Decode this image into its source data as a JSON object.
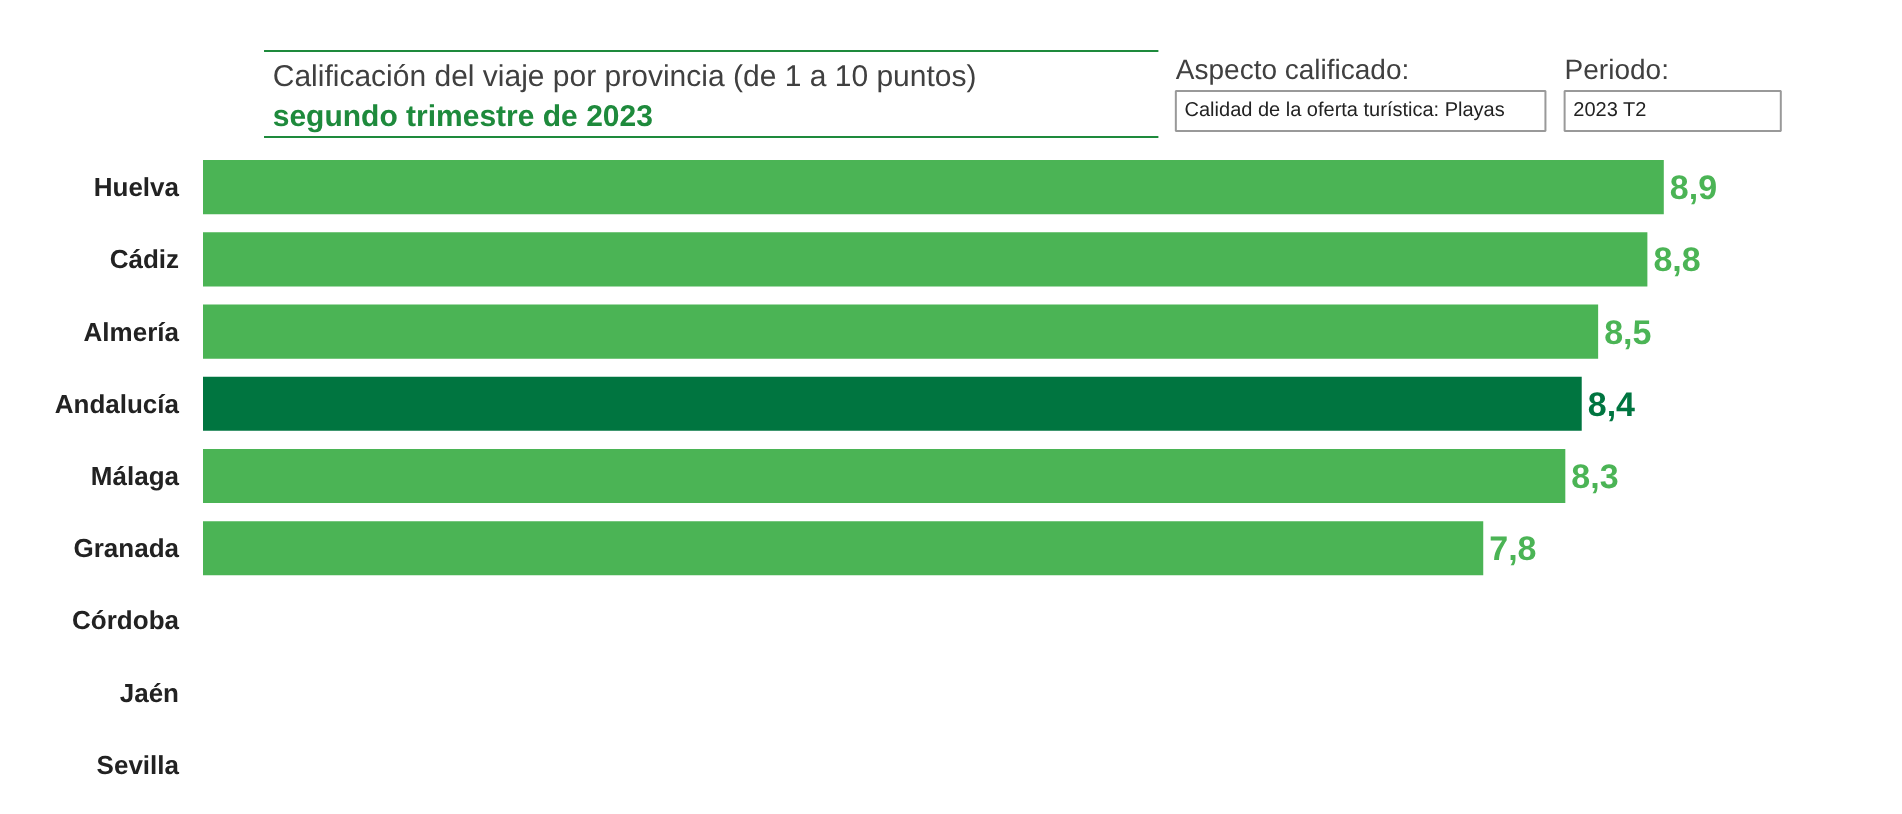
{
  "chart_data": {
    "type": "bar",
    "orientation": "horizontal",
    "title": "Calificación del viaje por provincia (de 1 a 10 puntos)",
    "subtitle": "segundo trimestre de 2023",
    "categories": [
      "Huelva",
      "Cádiz",
      "Almería",
      "Andalucía",
      "Málaga",
      "Granada",
      "Córdoba",
      "Jaén",
      "Sevilla"
    ],
    "values": [
      8.9,
      8.8,
      8.5,
      8.4,
      8.3,
      7.8,
      null,
      null,
      null
    ],
    "colors": [
      "#4bb455",
      "#4bb455",
      "#4bb455",
      "#007540",
      "#4bb455",
      "#4bb455",
      null,
      null,
      null
    ],
    "value_labels": [
      "8,9",
      "8,8",
      "8,5",
      "8,4",
      "8,3",
      "7,8",
      null,
      null,
      null
    ],
    "tick_labels": "y",
    "grid": false,
    "annotations": [
      "Aspecto calificado:",
      "Calidad de la oferta turística: Playas",
      "Periodo:",
      "2023 T2"
    ]
  }
}
